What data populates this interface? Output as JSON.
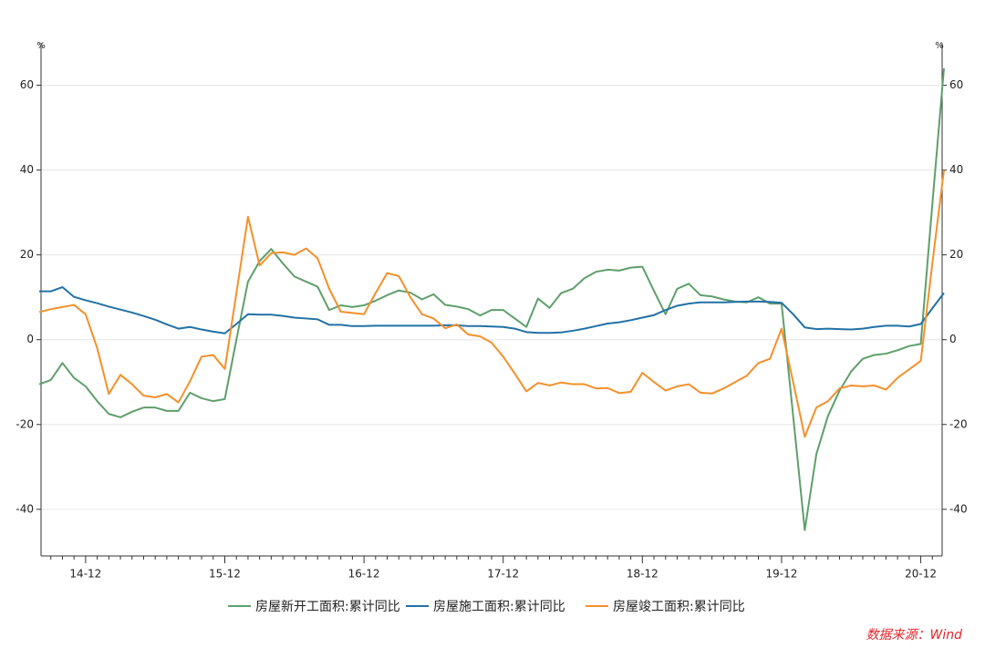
{
  "chart_data": {
    "type": "line",
    "unit": "%",
    "source": "数据来源：Wind",
    "categories": [
      null,
      null,
      null,
      null,
      "14-12",
      null,
      null,
      null,
      null,
      null,
      null,
      null,
      null,
      null,
      null,
      null,
      "15-12",
      null,
      null,
      null,
      null,
      null,
      null,
      null,
      null,
      null,
      null,
      null,
      "16-12",
      null,
      null,
      null,
      null,
      null,
      null,
      null,
      null,
      null,
      null,
      null,
      "17-12",
      null,
      null,
      null,
      null,
      null,
      null,
      null,
      null,
      null,
      null,
      null,
      "18-12",
      null,
      null,
      null,
      null,
      null,
      null,
      null,
      null,
      null,
      null,
      null,
      "19-12",
      null,
      null,
      null,
      null,
      null,
      null,
      null,
      null,
      null,
      null,
      null,
      "20-12",
      null,
      null
    ],
    "ylim": [
      -51,
      70
    ],
    "yticks": [
      -40,
      -20,
      0,
      20,
      40,
      60
    ],
    "grid": true,
    "series": [
      {
        "name": "房屋新开工面积:累计同比",
        "color": "#5e9f6b",
        "values": [
          -10.5,
          -9.5,
          -5.5,
          -9,
          -11,
          -14.5,
          -17.5,
          -18.3,
          -17,
          -16,
          -16,
          -16.8,
          -16.8,
          -12.5,
          -13.8,
          -14.5,
          -14,
          0,
          13.7,
          18.5,
          21.4,
          18,
          14.9,
          13.7,
          12.5,
          7,
          8.1,
          7.7,
          8.1,
          9.2,
          10.5,
          11.6,
          11.1,
          9.5,
          10.7,
          8.2,
          7.8,
          7.2,
          5.7,
          7,
          7,
          5,
          3,
          9.7,
          7.5,
          11,
          12,
          14.5,
          16,
          16.5,
          16.3,
          17,
          17.2,
          11.5,
          6,
          12,
          13.2,
          10.5,
          10.2,
          9.5,
          9,
          8.8,
          10,
          8.5,
          8.5,
          -18,
          -44.9,
          -27,
          -18,
          -12,
          -7.5,
          -4.5,
          -3.6,
          -3.3,
          -2.5,
          -1.5,
          -1,
          32,
          64
        ]
      },
      {
        "name": "房屋施工面积:累计同比",
        "color": "#2271a6",
        "values": [
          11.4,
          11.4,
          12.4,
          10.1,
          9.3,
          8.6,
          7.8,
          7.1,
          6.4,
          5.6,
          4.7,
          3.6,
          2.6,
          3,
          2.4,
          1.9,
          1.5,
          3.7,
          6,
          5.9,
          5.9,
          5.6,
          5.2,
          5,
          4.8,
          3.5,
          3.5,
          3.2,
          3.2,
          3.3,
          3.3,
          3.3,
          3.3,
          3.3,
          3.3,
          3.4,
          3.4,
          3.2,
          3.2,
          3.1,
          3,
          2.6,
          1.8,
          1.6,
          1.6,
          1.7,
          2.1,
          2.6,
          3.2,
          3.8,
          4.1,
          4.6,
          5.2,
          5.8,
          7,
          8,
          8.5,
          8.8,
          8.8,
          8.8,
          8.9,
          9,
          9,
          8.9,
          8.7,
          6,
          2.9,
          2.5,
          2.6,
          2.5,
          2.4,
          2.6,
          3,
          3.3,
          3.3,
          3.1,
          3.7,
          7.4,
          11
        ]
      },
      {
        "name": "房屋竣工面积:累计同比",
        "color": "#f5902a",
        "values": [
          6.5,
          7.2,
          7.7,
          8.2,
          6,
          -2,
          -12.8,
          -8.3,
          -10.5,
          -13.2,
          -13.6,
          -12.8,
          -14.8,
          -9.8,
          -4,
          -3.6,
          -6.9,
          11,
          29,
          17.5,
          20.4,
          20.6,
          20,
          21.5,
          19.2,
          12,
          6.6,
          6.3,
          6,
          11,
          15.7,
          15,
          10,
          6,
          5,
          2.7,
          3.6,
          1.2,
          0.8,
          -0.7,
          -4,
          -8,
          -12.2,
          -10.2,
          -10.8,
          -10.1,
          -10.5,
          -10.5,
          -11.5,
          -11.4,
          -12.6,
          -12.3,
          -7.8,
          -10,
          -12,
          -11,
          -10.5,
          -12.5,
          -12.7,
          -11.5,
          -10,
          -8.5,
          -5.5,
          -4.5,
          2.6,
          -10,
          -22.9,
          -16,
          -14.5,
          -11.5,
          -10.8,
          -11,
          -10.8,
          -11.8,
          -9,
          -7,
          -5,
          18,
          40
        ]
      }
    ]
  }
}
